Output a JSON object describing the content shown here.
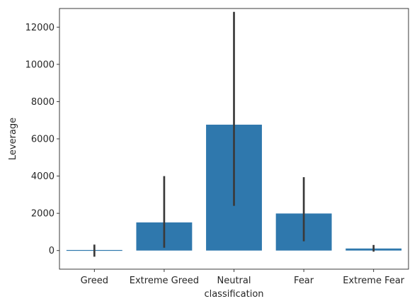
{
  "chart_data": {
    "type": "bar",
    "title": "",
    "xlabel": "classification",
    "ylabel": "Leverage",
    "ylim": [
      -1000,
      13000
    ],
    "yticks": [
      0,
      2000,
      4000,
      6000,
      8000,
      10000,
      12000
    ],
    "grid": false,
    "categories": [
      "Greed",
      "Extreme Greed",
      "Neutral",
      "Fear",
      "Extreme Fear"
    ],
    "values": [
      30,
      1510,
      6760,
      1990,
      110
    ],
    "error_low": [
      -330,
      150,
      2400,
      500,
      -60
    ],
    "error_high": [
      320,
      4000,
      12820,
      3940,
      300
    ],
    "colors": {
      "bar": "#2f78ad",
      "error": "#3a3a3a",
      "axis": "#262626"
    }
  }
}
